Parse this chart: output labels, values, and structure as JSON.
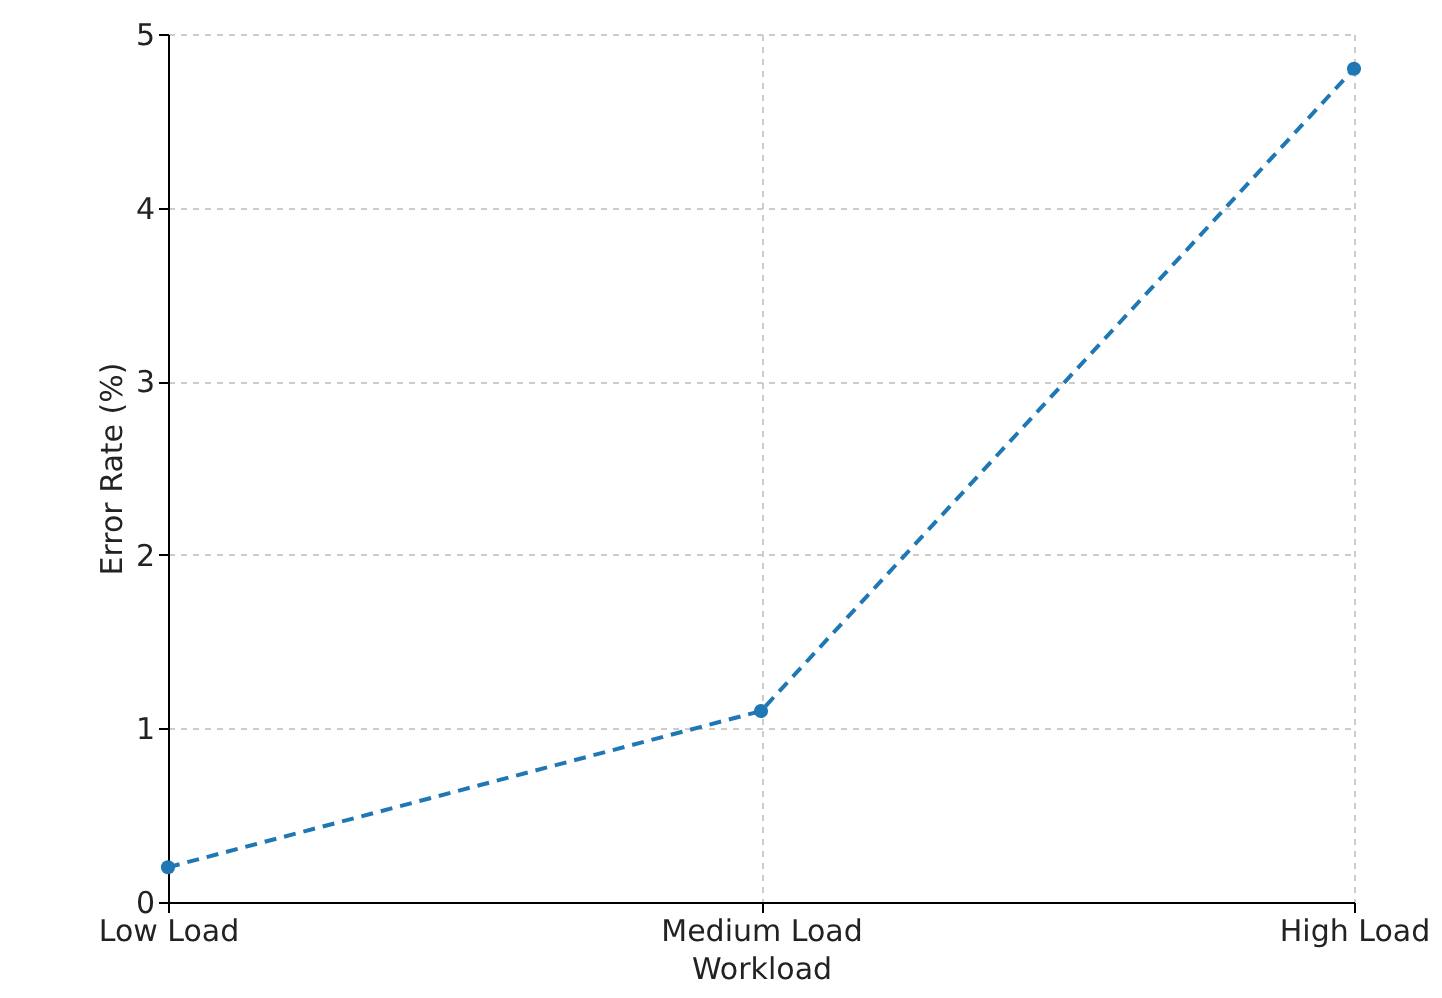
{
  "chart_data": {
    "type": "line",
    "xlabel": "Workload",
    "ylabel": "Error Rate (%)",
    "categories": [
      "Low Load",
      "Medium Load",
      "High Load"
    ],
    "series": [
      {
        "color": "#1f77b4",
        "values": [
          0.2,
          1.1,
          4.8
        ]
      }
    ],
    "ylim": [
      0,
      5
    ],
    "yticks": [
      0,
      1,
      2,
      3,
      4,
      5
    ],
    "grid": true,
    "marker": "circle",
    "line_style": "dashed"
  }
}
